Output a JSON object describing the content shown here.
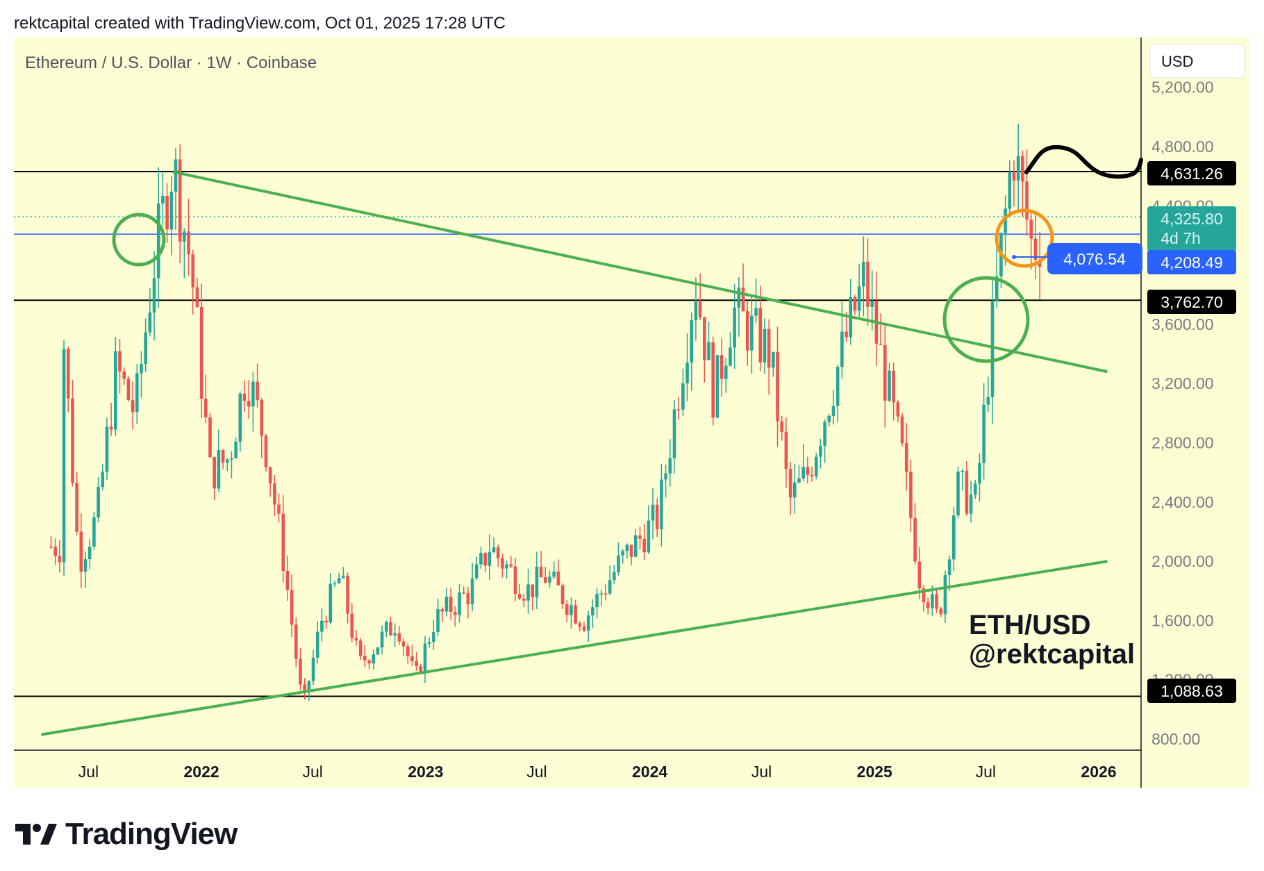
{
  "header": {
    "credit": "rektcapital created with TradingView.com, Oct 01, 2025 17:28 UTC"
  },
  "chart": {
    "symbol_line": "Ethereum / U.S. Dollar · 1W · Coinbase",
    "currency_button": "USD",
    "watermark_line1": "ETH/USD",
    "watermark_line2": "@rektcapital",
    "countdown": "4d 7h",
    "price_tags": {
      "resistance": "4,631.26",
      "last": "4,325.80",
      "blue_line": "4,208.49",
      "support_mid": "3,762.70",
      "support_low": "1,088.63",
      "measure": "4,076.54"
    },
    "colors": {
      "background": "#fefed5",
      "up": "#26a69a",
      "down": "#ef5350",
      "trendline": "#4caf50",
      "level_line": "#000000",
      "blue_line": "#2962ff",
      "last_price": "#26a69a",
      "orange_circle": "#f7931a"
    }
  },
  "logo": {
    "text": "TradingView"
  },
  "chart_data": {
    "type": "candlestick",
    "title": "Ethereum / U.S. Dollar · 1W · Coinbase",
    "y_axis_ticks": [
      800,
      1200,
      1600,
      2000,
      2400,
      2800,
      3200,
      3600,
      4000,
      4400,
      4800,
      5200
    ],
    "y_axis_tick_labels": [
      "800.00",
      "1,200.00",
      "1,600.00",
      "2,000.00",
      "2,400.00",
      "2,800.00",
      "3,200.00",
      "3,600.00",
      "4,000.00",
      "4,400.00",
      "4,800.00",
      "5,200.00"
    ],
    "x_axis_labels": [
      "Jul",
      "2022",
      "Jul",
      "2023",
      "Jul",
      "2024",
      "Jul",
      "2025",
      "Jul",
      "2026"
    ],
    "ylim": [
      650,
      5400
    ],
    "horizontal_levels": [
      4631.26,
      3762.7,
      1088.63
    ],
    "blue_line_level": 4208.49,
    "last_price": 4325.8,
    "measure_value": 4076.54,
    "price_series_keypoints": [
      {
        "date": "2021-05",
        "price": 2100
      },
      {
        "date": "2021-05",
        "price": 3900
      },
      {
        "date": "2021-06",
        "price": 2000
      },
      {
        "date": "2021-07",
        "price": 2300
      },
      {
        "date": "2021-08",
        "price": 3300
      },
      {
        "date": "2021-09",
        "price": 3000
      },
      {
        "date": "2021-10",
        "price": 4000
      },
      {
        "date": "2021-11",
        "price": 4700
      },
      {
        "date": "2021-12",
        "price": 4000
      },
      {
        "date": "2022-01",
        "price": 2600
      },
      {
        "date": "2022-02",
        "price": 2700
      },
      {
        "date": "2022-03",
        "price": 3300
      },
      {
        "date": "2022-04",
        "price": 2800
      },
      {
        "date": "2022-05",
        "price": 2000
      },
      {
        "date": "2022-06",
        "price": 1000
      },
      {
        "date": "2022-07",
        "price": 1600
      },
      {
        "date": "2022-08",
        "price": 1900
      },
      {
        "date": "2022-09",
        "price": 1300
      },
      {
        "date": "2022-11",
        "price": 1600
      },
      {
        "date": "2022-12",
        "price": 1200
      },
      {
        "date": "2023-01",
        "price": 1600
      },
      {
        "date": "2023-03",
        "price": 1800
      },
      {
        "date": "2023-04",
        "price": 2100
      },
      {
        "date": "2023-06",
        "price": 1800
      },
      {
        "date": "2023-07",
        "price": 1900
      },
      {
        "date": "2023-09",
        "price": 1600
      },
      {
        "date": "2023-11",
        "price": 2000
      },
      {
        "date": "2024-01",
        "price": 2300
      },
      {
        "date": "2024-03",
        "price": 3900
      },
      {
        "date": "2024-04",
        "price": 3100
      },
      {
        "date": "2024-05",
        "price": 3700
      },
      {
        "date": "2024-07",
        "price": 3400
      },
      {
        "date": "2024-08",
        "price": 2400
      },
      {
        "date": "2024-09",
        "price": 2600
      },
      {
        "date": "2024-11",
        "price": 3500
      },
      {
        "date": "2024-12",
        "price": 3900
      },
      {
        "date": "2025-01",
        "price": 3300
      },
      {
        "date": "2025-02",
        "price": 2700
      },
      {
        "date": "2025-03",
        "price": 1900
      },
      {
        "date": "2025-04",
        "price": 1600
      },
      {
        "date": "2025-05",
        "price": 2500
      },
      {
        "date": "2025-06",
        "price": 2400
      },
      {
        "date": "2025-07",
        "price": 3700
      },
      {
        "date": "2025-08",
        "price": 4800
      },
      {
        "date": "2025-09",
        "price": 4100
      },
      {
        "date": "2025-10",
        "price": 4325.8
      }
    ],
    "trendlines": [
      {
        "name": "descending",
        "from": {
          "date": "2021-11",
          "price": 4630
        },
        "to": {
          "date": "2026-01",
          "price": 3280
        }
      },
      {
        "name": "ascending",
        "from": {
          "date": "2021-04",
          "price": 830
        },
        "to": {
          "date": "2026-01",
          "price": 2000
        }
      }
    ],
    "grid": false
  }
}
